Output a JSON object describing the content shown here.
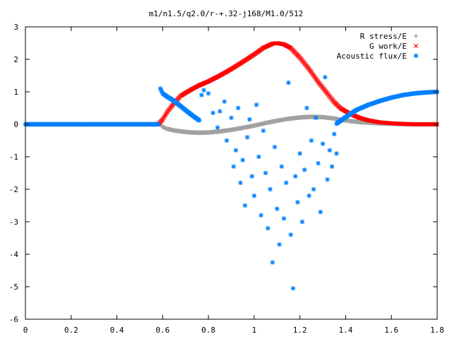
{
  "chart_data": {
    "type": "scatter",
    "title": "m1/n1.5/q2.0/r-+.32-j168/M1.0/512",
    "xlabel": "",
    "ylabel": "",
    "xlim": [
      0,
      1.8
    ],
    "ylim": [
      -6,
      3
    ],
    "grid": false,
    "legend_position": "top-right",
    "x_ticks": [
      "0",
      "0.2",
      "0.4",
      "0.6",
      "0.8",
      "1",
      "1.2",
      "1.4",
      "1.6",
      "1.8"
    ],
    "y_ticks": [
      "3",
      "2",
      "1",
      "0",
      "-1",
      "-2",
      "-3",
      "-4",
      "-5",
      "-6"
    ],
    "series": [
      {
        "name": "R stress/E",
        "marker": "plus",
        "color": "#a0a0a0",
        "points": [
          [
            0.0,
            0.0
          ],
          [
            0.59,
            0.0
          ],
          [
            0.6,
            -0.08
          ],
          [
            0.62,
            -0.14
          ],
          [
            0.65,
            -0.19
          ],
          [
            0.68,
            -0.22
          ],
          [
            0.72,
            -0.25
          ],
          [
            0.76,
            -0.26
          ],
          [
            0.8,
            -0.25
          ],
          [
            0.85,
            -0.22
          ],
          [
            0.9,
            -0.17
          ],
          [
            0.95,
            -0.11
          ],
          [
            1.0,
            -0.04
          ],
          [
            1.05,
            0.04
          ],
          [
            1.1,
            0.11
          ],
          [
            1.15,
            0.17
          ],
          [
            1.2,
            0.21
          ],
          [
            1.25,
            0.23
          ],
          [
            1.3,
            0.22
          ],
          [
            1.35,
            0.18
          ],
          [
            1.38,
            0.14
          ],
          [
            1.42,
            0.1
          ],
          [
            1.46,
            0.07
          ],
          [
            1.5,
            0.05
          ],
          [
            1.55,
            0.03
          ],
          [
            1.6,
            0.02
          ],
          [
            1.65,
            0.01
          ],
          [
            1.7,
            0.0
          ],
          [
            1.8,
            0.0
          ]
        ]
      },
      {
        "name": "G work/E",
        "marker": "cross",
        "color": "#ff0000",
        "points": [
          [
            0.58,
            0.0
          ],
          [
            0.6,
            0.15
          ],
          [
            0.62,
            0.38
          ],
          [
            0.65,
            0.65
          ],
          [
            0.68,
            0.88
          ],
          [
            0.72,
            1.05
          ],
          [
            0.76,
            1.2
          ],
          [
            0.8,
            1.32
          ],
          [
            0.85,
            1.5
          ],
          [
            0.9,
            1.7
          ],
          [
            0.95,
            1.92
          ],
          [
            1.0,
            2.15
          ],
          [
            1.04,
            2.35
          ],
          [
            1.08,
            2.48
          ],
          [
            1.1,
            2.5
          ],
          [
            1.13,
            2.46
          ],
          [
            1.16,
            2.35
          ],
          [
            1.2,
            2.05
          ],
          [
            1.24,
            1.7
          ],
          [
            1.28,
            1.3
          ],
          [
            1.32,
            0.95
          ],
          [
            1.35,
            0.68
          ],
          [
            1.38,
            0.48
          ],
          [
            1.42,
            0.32
          ],
          [
            1.46,
            0.2
          ],
          [
            1.5,
            0.12
          ],
          [
            1.55,
            0.06
          ],
          [
            1.6,
            0.03
          ],
          [
            1.65,
            0.01
          ],
          [
            1.7,
            0.0
          ],
          [
            1.8,
            0.0
          ]
        ]
      },
      {
        "name": "Acoustic flux/E",
        "marker": "star",
        "color": "#0080ff",
        "curve_points": [
          [
            0.0,
            0.0
          ],
          [
            0.58,
            0.0
          ],
          [
            0.59,
            1.1
          ],
          [
            0.6,
            0.95
          ],
          [
            0.62,
            0.85
          ],
          [
            0.65,
            0.72
          ],
          [
            0.68,
            0.55
          ],
          [
            0.71,
            0.38
          ],
          [
            0.74,
            0.22
          ],
          [
            0.76,
            0.12
          ],
          [
            1.36,
            0.02
          ],
          [
            1.38,
            0.12
          ],
          [
            1.4,
            0.22
          ],
          [
            1.42,
            0.32
          ],
          [
            1.45,
            0.45
          ],
          [
            1.5,
            0.6
          ],
          [
            1.55,
            0.72
          ],
          [
            1.6,
            0.82
          ],
          [
            1.65,
            0.9
          ],
          [
            1.7,
            0.95
          ],
          [
            1.75,
            0.98
          ],
          [
            1.8,
            1.0
          ]
        ],
        "scatter_points": [
          [
            0.77,
            0.9
          ],
          [
            0.78,
            1.05
          ],
          [
            0.8,
            0.95
          ],
          [
            0.82,
            0.35
          ],
          [
            0.84,
            -0.1
          ],
          [
            0.85,
            0.4
          ],
          [
            0.87,
            0.7
          ],
          [
            0.88,
            -0.5
          ],
          [
            0.9,
            0.2
          ],
          [
            0.91,
            -1.3
          ],
          [
            0.92,
            -0.8
          ],
          [
            0.93,
            0.5
          ],
          [
            0.94,
            -1.8
          ],
          [
            0.95,
            -1.1
          ],
          [
            0.96,
            -2.5
          ],
          [
            0.97,
            -0.4
          ],
          [
            0.98,
            0.15
          ],
          [
            0.99,
            -1.6
          ],
          [
            1.0,
            -2.2
          ],
          [
            1.01,
            0.6
          ],
          [
            1.02,
            -1.0
          ],
          [
            1.03,
            -2.8
          ],
          [
            1.04,
            -0.2
          ],
          [
            1.05,
            -1.5
          ],
          [
            1.06,
            -3.2
          ],
          [
            1.07,
            -2.0
          ],
          [
            1.08,
            -4.25
          ],
          [
            1.09,
            -0.7
          ],
          [
            1.1,
            -2.6
          ],
          [
            1.11,
            -3.7
          ],
          [
            1.12,
            -1.3
          ],
          [
            1.13,
            -2.9
          ],
          [
            1.14,
            -1.8
          ],
          [
            1.15,
            1.28
          ],
          [
            1.16,
            -3.4
          ],
          [
            1.17,
            -5.05
          ],
          [
            1.18,
            -1.6
          ],
          [
            1.19,
            -2.4
          ],
          [
            1.2,
            -0.9
          ],
          [
            1.21,
            -3.0
          ],
          [
            1.22,
            -1.4
          ],
          [
            1.23,
            0.5
          ],
          [
            1.24,
            -2.2
          ],
          [
            1.25,
            -0.5
          ],
          [
            1.26,
            -2.0
          ],
          [
            1.27,
            0.2
          ],
          [
            1.28,
            -1.2
          ],
          [
            1.29,
            -2.7
          ],
          [
            1.3,
            -0.6
          ],
          [
            1.31,
            1.45
          ],
          [
            1.32,
            -1.7
          ],
          [
            1.33,
            -0.8
          ],
          [
            1.34,
            -1.3
          ],
          [
            1.35,
            -0.3
          ],
          [
            1.36,
            -0.9
          ]
        ]
      }
    ]
  }
}
